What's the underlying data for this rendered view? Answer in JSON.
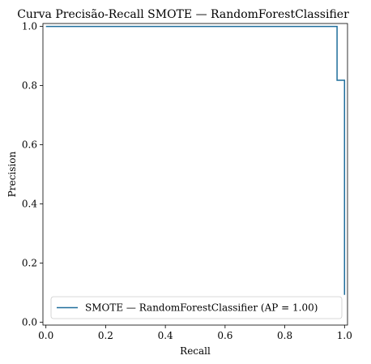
{
  "chart_data": {
    "type": "line",
    "title": "Curva Precisão-Recall SMOTE — RandomForestClassifier",
    "xlabel": "Recall",
    "ylabel": "Precision",
    "xlim": [
      -0.01,
      1.01
    ],
    "ylim": [
      -0.01,
      1.01
    ],
    "xticks": [
      0.0,
      0.2,
      0.4,
      0.6,
      0.8,
      1.0
    ],
    "xtick_labels": [
      "0.0",
      "0.2",
      "0.4",
      "0.6",
      "0.8",
      "1.0"
    ],
    "yticks": [
      0.0,
      0.2,
      0.4,
      0.6,
      0.8,
      1.0
    ],
    "ytick_labels": [
      "0.0",
      "0.2",
      "0.4",
      "0.6",
      "0.8",
      "1.0"
    ],
    "grid": false,
    "legend_position": "lower-right",
    "series": [
      {
        "name": "SMOTE — RandomForestClassifier (AP = 1.00)",
        "color": "#1f6e9c",
        "drawstyle": "steps-post",
        "points": [
          [
            0.0,
            1.0
          ],
          [
            0.975,
            1.0
          ],
          [
            0.975,
            0.818
          ],
          [
            0.99,
            0.818
          ],
          [
            0.99,
            0.818
          ],
          [
            1.0,
            0.818
          ],
          [
            1.0,
            0.092
          ]
        ]
      }
    ]
  }
}
